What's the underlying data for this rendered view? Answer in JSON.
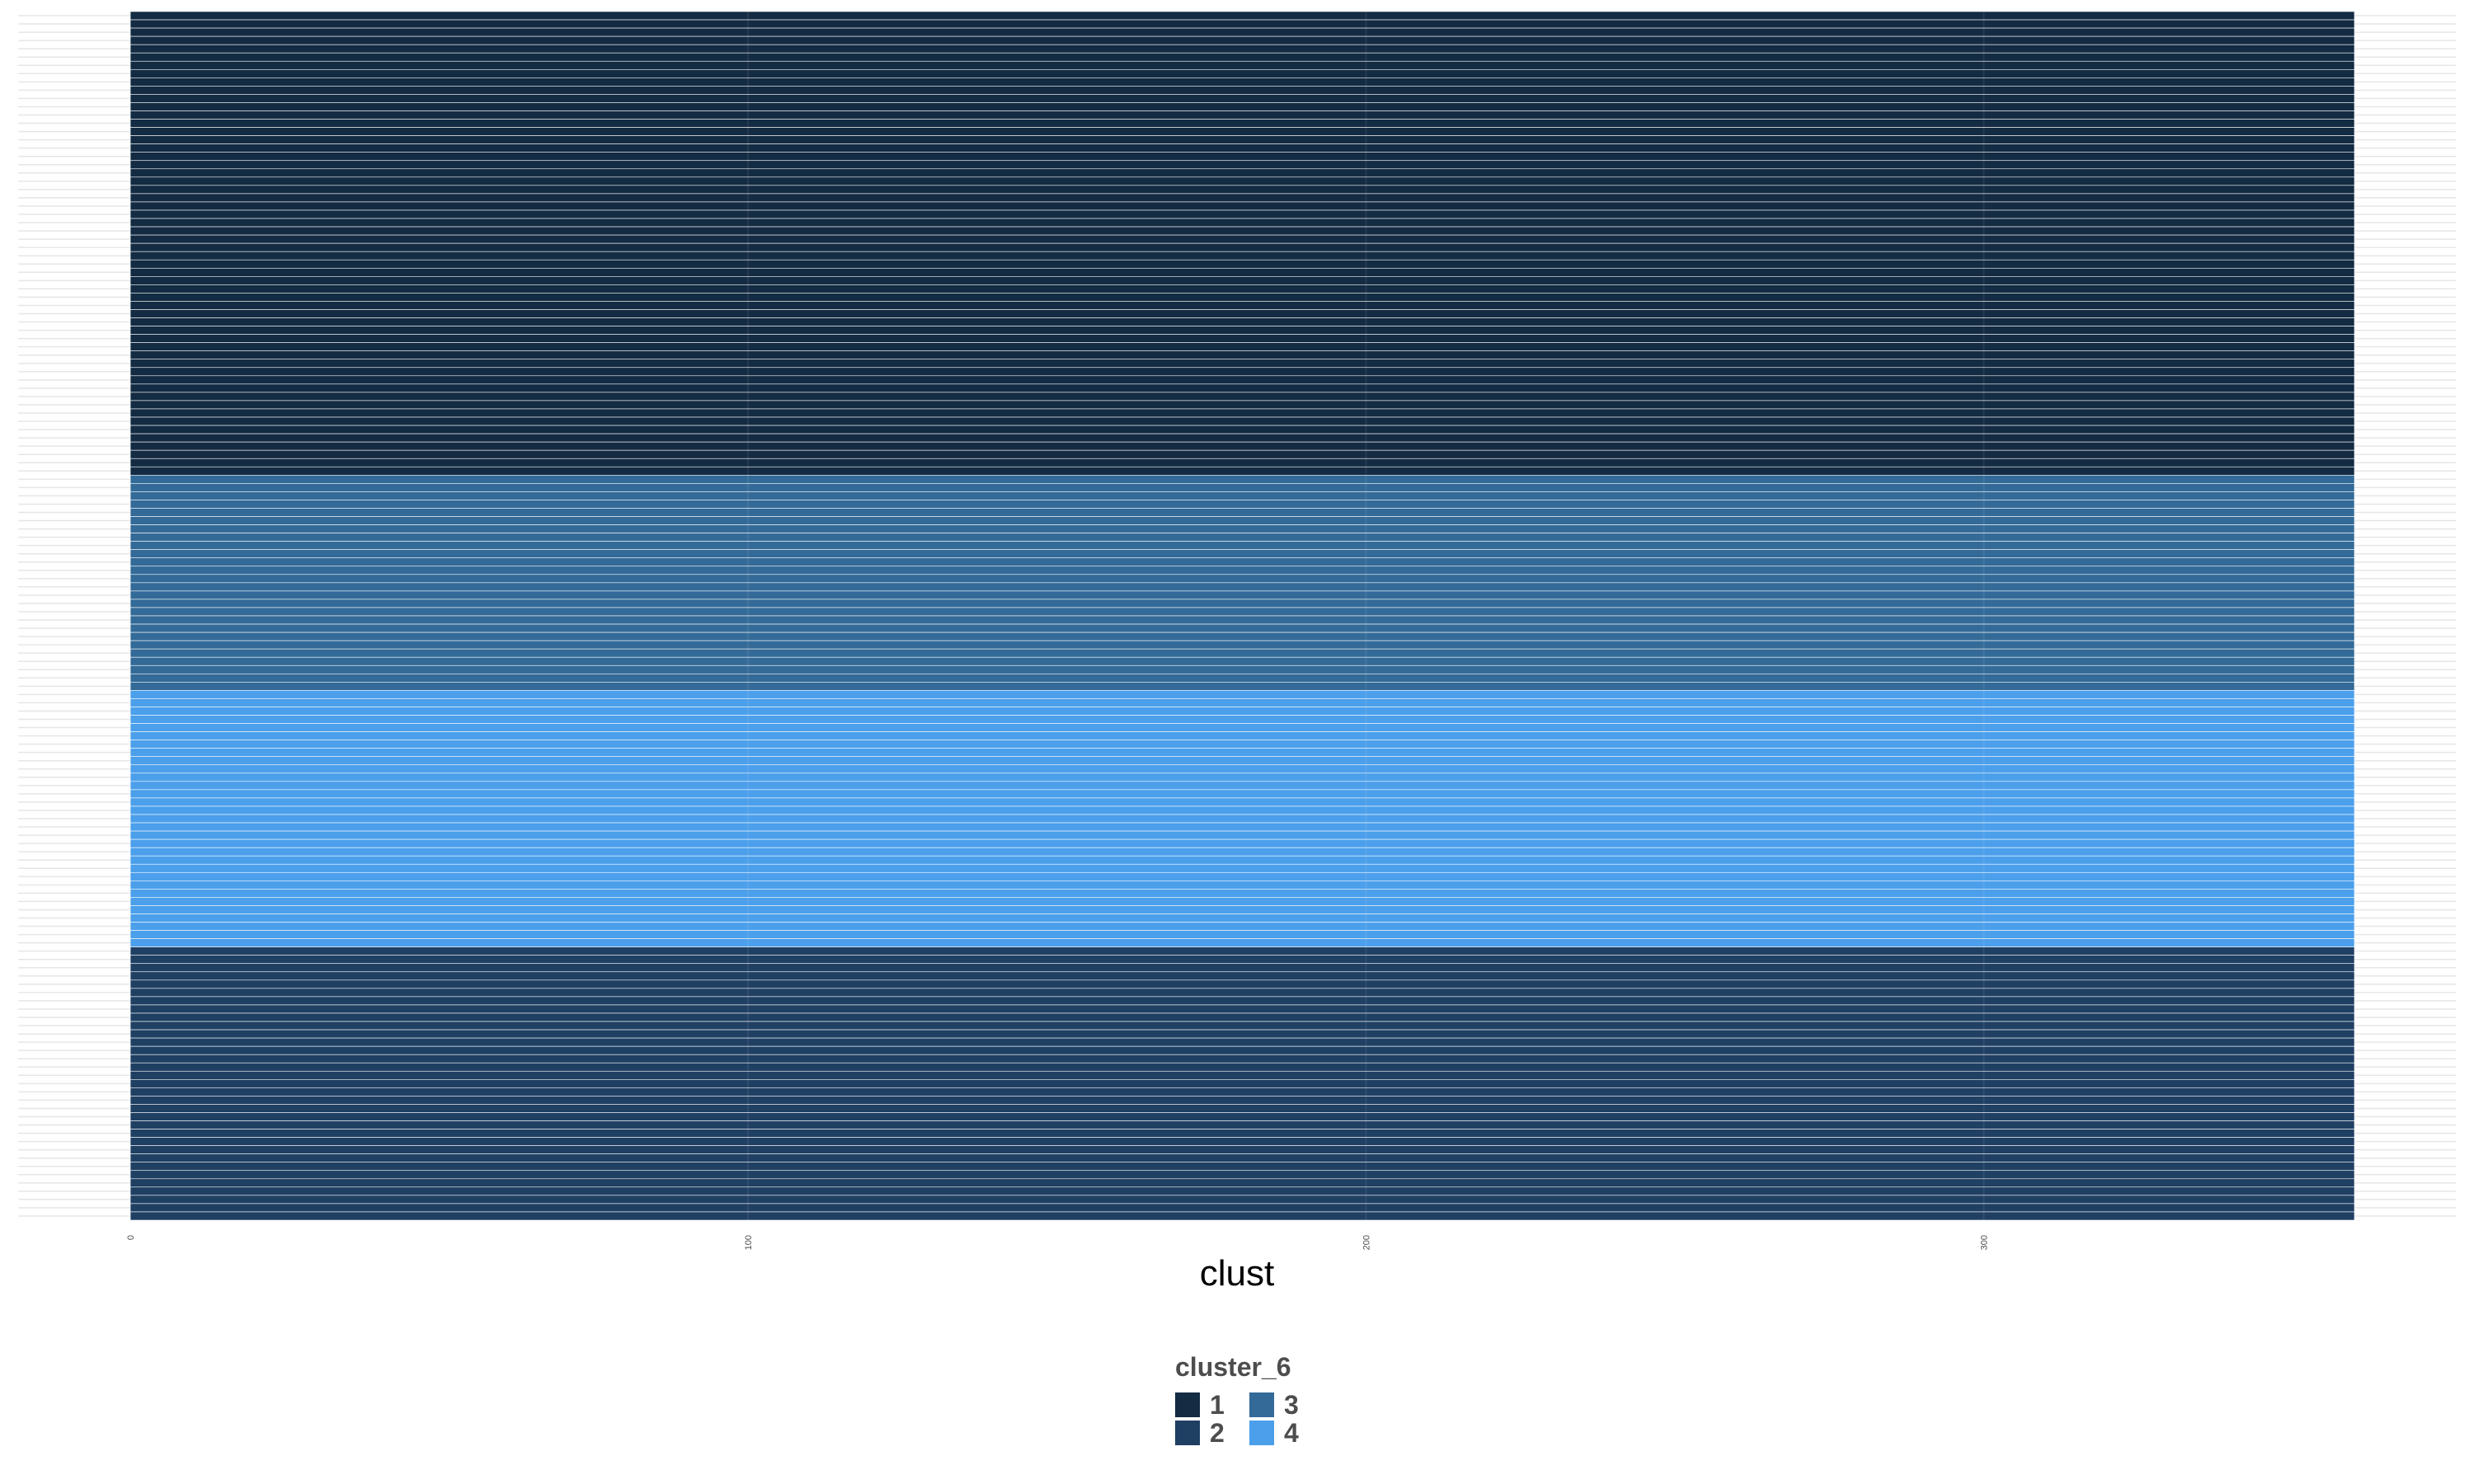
{
  "chart_data": {
    "type": "bar",
    "orientation": "horizontal",
    "xlabel": "clust",
    "ylabel": "",
    "xlim": [
      0,
      360
    ],
    "x_ticks": [
      "0",
      "100",
      "200",
      "300"
    ],
    "grid": true,
    "legend_placement": "bottom",
    "bar_value": 360,
    "legend": {
      "title": "cluster_6",
      "entries": [
        {
          "label": "1",
          "color": "#132B43"
        },
        {
          "label": "2",
          "color": "#1F3F63"
        },
        {
          "label": "3",
          "color": "#336A98"
        },
        {
          "label": "4",
          "color": "#4B9FEB"
        }
      ]
    },
    "groups": [
      {
        "cluster": "1",
        "count": 56
      },
      {
        "cluster": "3",
        "count": 26
      },
      {
        "cluster": "4",
        "count": 31
      },
      {
        "cluster": "2",
        "count": 33
      }
    ]
  }
}
